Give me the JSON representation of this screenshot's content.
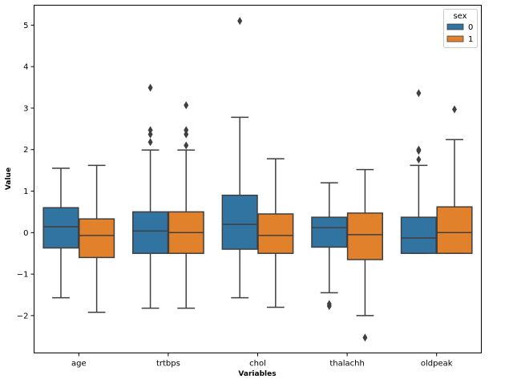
{
  "chart_data": {
    "type": "box",
    "title": "",
    "xlabel": "Variables",
    "ylabel": "Value",
    "ylim": [
      -2.9,
      5.48
    ],
    "yticks": [
      -2,
      -1,
      0,
      1,
      2,
      3,
      4,
      5
    ],
    "ytick_labels": [
      "−2",
      "−1",
      "0",
      "1",
      "2",
      "3",
      "4",
      "5"
    ],
    "grid": false,
    "categories": [
      "age",
      "trtbps",
      "chol",
      "thalachh",
      "oldpeak"
    ],
    "legend": {
      "title": "sex",
      "placement": "top-right"
    },
    "series": [
      {
        "name": "0",
        "color": "#3274a1",
        "boxes": [
          {
            "low": -1.57,
            "q1": -0.37,
            "median": 0.14,
            "q3": 0.6,
            "high": 1.55,
            "outliers": []
          },
          {
            "low": -1.82,
            "q1": -0.5,
            "median": 0.04,
            "q3": 0.5,
            "high": 1.99,
            "outliers": [
              2.18,
              2.37,
              2.47,
              3.49
            ]
          },
          {
            "low": -1.57,
            "q1": -0.4,
            "median": 0.2,
            "q3": 0.9,
            "high": 2.78,
            "outliers": [
              5.1
            ]
          },
          {
            "low": -1.45,
            "q1": -0.35,
            "median": 0.12,
            "q3": 0.37,
            "high": 1.2,
            "outliers": [
              -1.72,
              -1.77
            ]
          },
          {
            "low": -0.5,
            "q1": -0.5,
            "median": -0.13,
            "q3": 0.37,
            "high": 1.62,
            "outliers": [
              1.76,
              1.97,
              2.0,
              3.36
            ]
          }
        ]
      },
      {
        "name": "1",
        "color": "#e1812c",
        "boxes": [
          {
            "low": -1.92,
            "q1": -0.6,
            "median": -0.07,
            "q3": 0.33,
            "high": 1.62,
            "outliers": []
          },
          {
            "low": -1.82,
            "q1": -0.5,
            "median": 0.0,
            "q3": 0.5,
            "high": 1.99,
            "outliers": [
              2.1,
              2.37,
              2.47,
              3.07
            ]
          },
          {
            "low": -1.8,
            "q1": -0.5,
            "median": -0.07,
            "q3": 0.45,
            "high": 1.78,
            "outliers": []
          },
          {
            "low": -2.0,
            "q1": -0.65,
            "median": -0.05,
            "q3": 0.47,
            "high": 1.52,
            "outliers": [
              -2.53
            ]
          },
          {
            "low": -0.5,
            "q1": -0.5,
            "median": 0.0,
            "q3": 0.62,
            "high": 2.24,
            "outliers": [
              2.97
            ]
          }
        ]
      }
    ]
  }
}
